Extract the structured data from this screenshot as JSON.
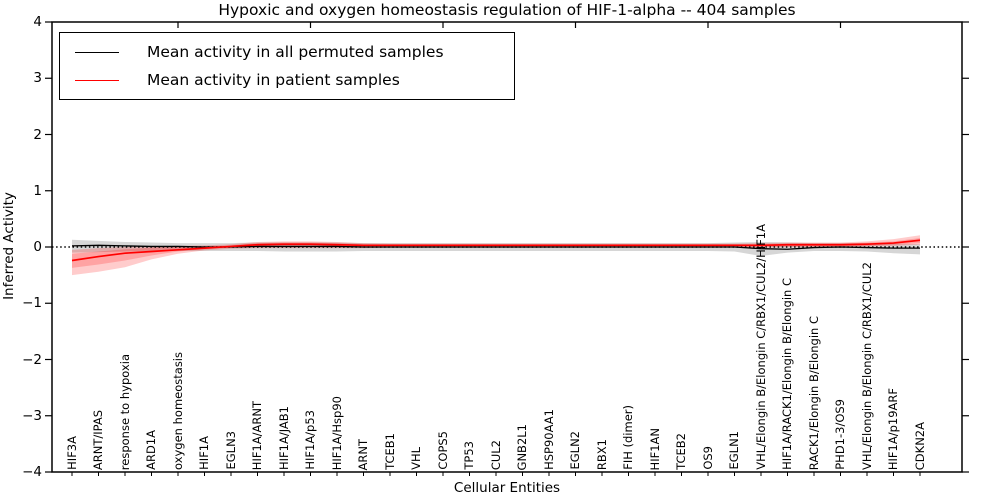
{
  "title": "Hypoxic and oxygen homeostasis regulation of HIF-1-alpha -- 404 samples",
  "axes": {
    "ylabel": "Inferred Activity",
    "xlabel": "Cellular Entities",
    "ytick_labels": [
      "4",
      "3",
      "2",
      "1",
      "0",
      "−1",
      "−2",
      "−3",
      "−4"
    ],
    "ytick_values": [
      4,
      3,
      2,
      1,
      0,
      -1,
      -2,
      -3,
      -4
    ]
  },
  "legend": {
    "position": "upper left",
    "items": [
      {
        "label": "Mean activity in all permuted samples",
        "color": "#000000"
      },
      {
        "label": "Mean activity in patient samples",
        "color": "#ff0000"
      }
    ]
  },
  "chart_data": {
    "type": "line",
    "title": "Hypoxic and oxygen homeostasis regulation of HIF-1-alpha -- 404 samples",
    "xlabel": "Cellular Entities",
    "ylabel": "Inferred Activity",
    "ylim": [
      -4,
      4
    ],
    "grid": false,
    "legend_position": "upper left",
    "zero_line": {
      "style": "dotted",
      "color": "#000000",
      "y": 0
    },
    "top_tick_indices": [
      4,
      9,
      14,
      19,
      24,
      29
    ],
    "categories": [
      "HIF3A",
      "ARNT/IPAS",
      "response to hypoxia",
      "ARD1A",
      "oxygen homeostasis",
      "HIF1A",
      "EGLN3",
      "HIF1A/ARNT",
      "HIF1A/JAB1",
      "HIF1A/p53",
      "HIF1A/Hsp90",
      "ARNT",
      "TCEB1",
      "VHL",
      "COPS5",
      "TP53",
      "CUL2",
      "GNB2L1",
      "HSP90AA1",
      "EGLN2",
      "RBX1",
      "FIH (dimer)",
      "HIF1AN",
      "TCEB2",
      "OS9",
      "EGLN1",
      "VHL/Elongin B/Elongin C/RBX1/CUL2/HIF1A",
      "HIF1A/RACK1/Elongin B/Elongin C",
      "RACK1/Elongin B/Elongin C",
      "PHD1-3/OS9",
      "VHL/Elongin B/Elongin C/RBX1/CUL2",
      "HIF1A/p19ARF",
      "CDKN2A"
    ],
    "series": [
      {
        "name": "Mean activity in all permuted samples",
        "color": "#000000",
        "band_color": "rgba(0,0,0,0.16)",
        "values": [
          0.02,
          0.03,
          0.02,
          0.01,
          0.01,
          0.0,
          0.0,
          0.01,
          0.01,
          0.01,
          0.01,
          0.0,
          0.0,
          0.0,
          0.0,
          0.0,
          0.0,
          0.0,
          0.0,
          0.0,
          0.0,
          0.0,
          0.0,
          0.0,
          0.0,
          0.0,
          -0.03,
          -0.04,
          -0.01,
          0.0,
          -0.01,
          -0.02,
          -0.02
        ],
        "band_low": [
          -0.1,
          -0.09,
          -0.08,
          -0.07,
          -0.07,
          -0.07,
          -0.07,
          -0.07,
          -0.08,
          -0.08,
          -0.08,
          -0.07,
          -0.07,
          -0.07,
          -0.07,
          -0.07,
          -0.07,
          -0.07,
          -0.07,
          -0.07,
          -0.07,
          -0.07,
          -0.07,
          -0.07,
          -0.07,
          -0.08,
          -0.16,
          -0.1,
          -0.07,
          -0.07,
          -0.08,
          -0.11,
          -0.13
        ],
        "band_high": [
          0.13,
          0.11,
          0.09,
          0.08,
          0.07,
          0.07,
          0.07,
          0.08,
          0.08,
          0.08,
          0.08,
          0.07,
          0.07,
          0.07,
          0.07,
          0.07,
          0.07,
          0.07,
          0.07,
          0.07,
          0.07,
          0.07,
          0.07,
          0.07,
          0.07,
          0.08,
          0.09,
          0.08,
          0.07,
          0.07,
          0.07,
          0.06,
          0.05
        ]
      },
      {
        "name": "Mean activity in patient samples",
        "color": "#ff0000",
        "band_color": "rgba(255,0,0,0.20)",
        "values": [
          -0.24,
          -0.17,
          -0.11,
          -0.08,
          -0.05,
          -0.02,
          0.01,
          0.04,
          0.05,
          0.05,
          0.04,
          0.03,
          0.03,
          0.03,
          0.03,
          0.03,
          0.03,
          0.03,
          0.03,
          0.03,
          0.03,
          0.03,
          0.03,
          0.03,
          0.03,
          0.03,
          0.03,
          0.04,
          0.04,
          0.04,
          0.05,
          0.07,
          0.12
        ],
        "band_low": [
          -0.5,
          -0.44,
          -0.36,
          -0.22,
          -0.12,
          -0.06,
          -0.03,
          -0.02,
          -0.02,
          -0.02,
          -0.02,
          -0.02,
          -0.01,
          -0.01,
          -0.01,
          -0.01,
          -0.01,
          -0.01,
          -0.01,
          -0.01,
          -0.01,
          -0.01,
          -0.01,
          -0.01,
          -0.01,
          -0.01,
          -0.01,
          0.0,
          0.0,
          0.0,
          0.01,
          0.02,
          0.04
        ],
        "band_high": [
          -0.05,
          -0.02,
          0.0,
          0.01,
          0.02,
          0.03,
          0.05,
          0.09,
          0.1,
          0.1,
          0.09,
          0.07,
          0.06,
          0.06,
          0.06,
          0.06,
          0.06,
          0.06,
          0.06,
          0.06,
          0.06,
          0.06,
          0.06,
          0.06,
          0.06,
          0.06,
          0.07,
          0.08,
          0.08,
          0.08,
          0.1,
          0.14,
          0.21
        ],
        "inner_band_low": [
          -0.37,
          -0.31,
          -0.24,
          -0.15,
          -0.08,
          -0.04,
          -0.01,
          0.0,
          0.01,
          0.01,
          0.01,
          0.0,
          0.0,
          0.0,
          0.0,
          0.0,
          0.0,
          0.0,
          0.0,
          0.0,
          0.0,
          0.0,
          0.0,
          0.0,
          0.0,
          0.0,
          0.0,
          0.01,
          0.01,
          0.01,
          0.02,
          0.04,
          0.07
        ],
        "inner_band_high": [
          -0.12,
          -0.08,
          -0.04,
          -0.01,
          0.0,
          0.01,
          0.03,
          0.07,
          0.08,
          0.08,
          0.07,
          0.05,
          0.05,
          0.05,
          0.05,
          0.05,
          0.05,
          0.05,
          0.05,
          0.05,
          0.05,
          0.05,
          0.05,
          0.05,
          0.05,
          0.05,
          0.05,
          0.06,
          0.06,
          0.06,
          0.08,
          0.1,
          0.16
        ]
      }
    ]
  }
}
